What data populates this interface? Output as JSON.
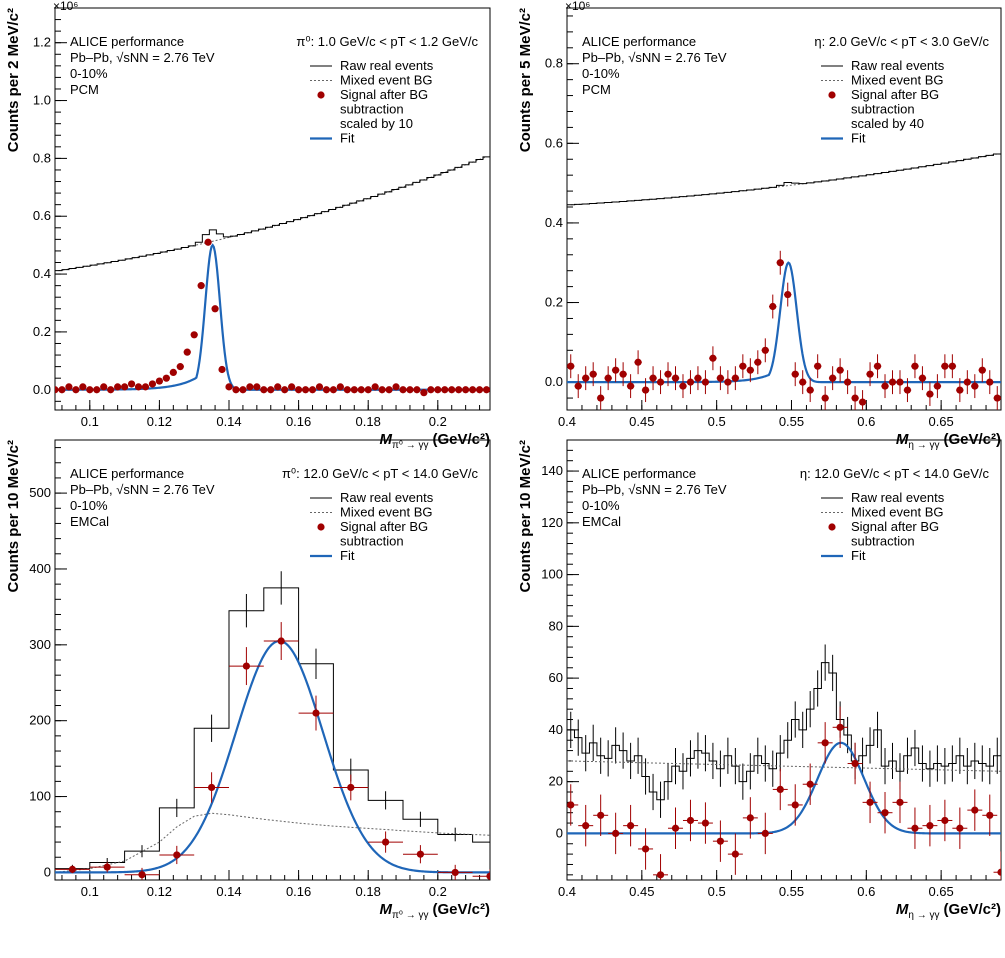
{
  "colors": {
    "signal": "#a00000",
    "fit": "#1f66b8",
    "raw": "#000000",
    "mixed": "#666666"
  },
  "chart_data": [
    {
      "type": "line",
      "panel": "pi0-pcm",
      "xlim": [
        0.09,
        0.215
      ],
      "ylim": [
        -0.07,
        1.32
      ],
      "x_ticks": [
        "0.1",
        "0.12",
        "0.14",
        "0.16",
        "0.18",
        "0.2"
      ],
      "y_ticks": [
        "0.0",
        "0.2",
        "0.4",
        "0.6",
        "0.8",
        "1.0",
        "1.2"
      ],
      "y_exponent": "×10⁶",
      "ylabel": "Counts per  2 MeV/c²",
      "xlabel": "M",
      "xlabel_sub": "π⁰ → γγ",
      "xlabel_unit": "(GeV/c²)",
      "info_lines": [
        "ALICE performance",
        "Pb–Pb, √sNN = 2.76 TeV",
        "0-10%",
        "PCM"
      ],
      "kinematic": "π⁰: 1.0 GeV/c < pT < 1.2 GeV/c",
      "legend": [
        "Raw real events",
        "Mixed event BG",
        "Signal after BG",
        "subtraction",
        "scaled by 10",
        "Fit"
      ],
      "raw": {
        "x0": 0.09,
        "x1": 0.215,
        "a": 0.41,
        "b": 0.81,
        "curv": -0.18,
        "peak_x": 0.135,
        "peak_amp": 0.04,
        "peak_w": 0.002
      },
      "mixed": {
        "a": 0.41,
        "b": 0.81,
        "curv": -0.18
      },
      "signal_x": [
        0.09,
        0.092,
        0.094,
        0.096,
        0.098,
        0.1,
        0.102,
        0.104,
        0.106,
        0.108,
        0.11,
        0.112,
        0.114,
        0.116,
        0.118,
        0.12,
        0.122,
        0.124,
        0.126,
        0.128,
        0.13,
        0.132,
        0.134,
        0.136,
        0.138,
        0.14,
        0.142,
        0.144,
        0.146,
        0.148,
        0.15,
        0.152,
        0.154,
        0.156,
        0.158,
        0.16,
        0.162,
        0.164,
        0.166,
        0.168,
        0.17,
        0.172,
        0.174,
        0.176,
        0.178,
        0.18,
        0.182,
        0.184,
        0.186,
        0.188,
        0.19,
        0.192,
        0.194,
        0.196,
        0.198,
        0.2,
        0.202,
        0.204,
        0.206,
        0.208,
        0.21,
        0.212,
        0.214
      ],
      "signal_y": [
        0.0,
        0.0,
        0.01,
        0.0,
        0.01,
        0.0,
        0.0,
        0.01,
        0.0,
        0.01,
        0.01,
        0.02,
        0.01,
        0.01,
        0.02,
        0.03,
        0.04,
        0.06,
        0.08,
        0.13,
        0.19,
        0.36,
        0.51,
        0.28,
        0.07,
        0.01,
        0.0,
        0.0,
        0.01,
        0.01,
        0.0,
        0.0,
        0.01,
        0.0,
        0.01,
        0.0,
        0.0,
        0.0,
        0.01,
        0.0,
        0.0,
        0.01,
        0.0,
        0.0,
        0.0,
        0.0,
        0.01,
        0.0,
        0.0,
        0.01,
        0.0,
        0.0,
        0.0,
        -0.01,
        0.0,
        0.0,
        0.0,
        0.0,
        0.0,
        0.0,
        0.0,
        0.0,
        0.0
      ],
      "signal_err": 0.008,
      "signal_xerr": 0.001,
      "fit": {
        "mu": 0.1353,
        "sigma": 0.0021,
        "amp": 0.5,
        "tail": 0.006,
        "xmin": 0.09,
        "xmax": 0.215
      }
    },
    {
      "type": "line",
      "panel": "eta-pcm",
      "xlim": [
        0.4,
        0.69
      ],
      "ylim": [
        -0.07,
        0.94
      ],
      "x_ticks": [
        "0.4",
        "0.45",
        "0.5",
        "0.55",
        "0.6",
        "0.65"
      ],
      "y_ticks": [
        "0.0",
        "0.2",
        "0.4",
        "0.6",
        "0.8"
      ],
      "y_exponent": "×10⁶",
      "ylabel": "Counts per  5 MeV/c²",
      "xlabel": "M",
      "xlabel_sub": "η → γγ",
      "xlabel_unit": "(GeV/c²)",
      "info_lines": [
        "ALICE performance",
        "Pb–Pb, √sNN = 2.76 TeV",
        "0-10%",
        "PCM"
      ],
      "kinematic": "η: 2.0 GeV/c < pT < 3.0 GeV/c",
      "legend": [
        "Raw real events",
        "Mixed event BG",
        "Signal after BG",
        "subtraction",
        "scaled by 40",
        "Fit"
      ],
      "raw": {
        "x0": 0.4,
        "x1": 0.69,
        "a": 0.445,
        "b": 0.575,
        "curv": -0.07,
        "peak_x": 0.548,
        "peak_amp": 0.008,
        "peak_w": 0.004
      },
      "mixed": {
        "a": 0.445,
        "b": 0.575,
        "curv": -0.07
      },
      "signal_x": [
        0.4025,
        0.4075,
        0.4125,
        0.4175,
        0.4225,
        0.4275,
        0.4325,
        0.4375,
        0.4425,
        0.4475,
        0.4525,
        0.4575,
        0.4625,
        0.4675,
        0.4725,
        0.4775,
        0.4825,
        0.4875,
        0.4925,
        0.4975,
        0.5025,
        0.5075,
        0.5125,
        0.5175,
        0.5225,
        0.5275,
        0.5325,
        0.5375,
        0.5425,
        0.5475,
        0.5525,
        0.5575,
        0.5625,
        0.5675,
        0.5725,
        0.5775,
        0.5825,
        0.5875,
        0.5925,
        0.5975,
        0.6025,
        0.6075,
        0.6125,
        0.6175,
        0.6225,
        0.6275,
        0.6325,
        0.6375,
        0.6425,
        0.6475,
        0.6525,
        0.6575,
        0.6625,
        0.6675,
        0.6725,
        0.6775,
        0.6825,
        0.6875
      ],
      "signal_y": [
        0.04,
        -0.01,
        0.01,
        0.02,
        -0.04,
        0.01,
        0.03,
        0.02,
        -0.01,
        0.05,
        -0.02,
        0.01,
        0.0,
        0.02,
        0.01,
        -0.01,
        0.0,
        0.01,
        0.0,
        0.06,
        0.01,
        0.0,
        0.01,
        0.04,
        0.03,
        0.05,
        0.08,
        0.19,
        0.3,
        0.22,
        0.02,
        0.0,
        -0.02,
        0.04,
        -0.04,
        0.01,
        0.03,
        0.0,
        -0.04,
        -0.05,
        0.02,
        0.04,
        -0.01,
        0.0,
        0.0,
        -0.02,
        0.04,
        0.01,
        -0.03,
        -0.01,
        0.04,
        0.04,
        -0.02,
        0.0,
        -0.01,
        0.03,
        0.0,
        -0.04
      ],
      "signal_err": 0.03,
      "signal_xerr": 0.0025,
      "fit": {
        "mu": 0.548,
        "sigma": 0.0055,
        "amp": 0.3,
        "tail": 0.012,
        "xmin": 0.4,
        "xmax": 0.69
      }
    },
    {
      "type": "line",
      "panel": "pi0-emcal",
      "xlim": [
        0.09,
        0.215
      ],
      "ylim": [
        -10,
        570
      ],
      "x_ticks": [
        "0.1",
        "0.12",
        "0.14",
        "0.16",
        "0.18",
        "0.2"
      ],
      "y_ticks": [
        "0",
        "100",
        "200",
        "300",
        "400",
        "500"
      ],
      "y_exponent": "",
      "ylabel": "Counts per 10 MeV/c²",
      "xlabel": "M",
      "xlabel_sub": "π⁰ → γγ",
      "xlabel_unit": "(GeV/c²)",
      "info_lines": [
        "ALICE performance",
        "Pb–Pb, √sNN = 2.76 TeV",
        "0-10%",
        "EMCal"
      ],
      "kinematic": "π⁰: 12.0 GeV/c < pT < 14.0 GeV/c",
      "legend": [
        "Raw real events",
        "Mixed event BG",
        "Signal after BG",
        "subtraction",
        "Fit"
      ],
      "raw_bins_x": [
        0.09,
        0.1,
        0.11,
        0.12,
        0.13,
        0.14,
        0.15,
        0.16,
        0.17,
        0.18,
        0.19,
        0.2,
        0.21
      ],
      "raw_bins_y": [
        5,
        13,
        28,
        85,
        190,
        345,
        375,
        275,
        135,
        95,
        70,
        50,
        40
      ],
      "raw_err": [
        5,
        6,
        8,
        12,
        18,
        22,
        22,
        20,
        15,
        12,
        10,
        9,
        8
      ],
      "mixed_x": [
        0.09,
        0.1,
        0.11,
        0.12,
        0.125,
        0.13,
        0.135,
        0.14,
        0.15,
        0.16,
        0.17,
        0.18,
        0.19,
        0.2,
        0.21,
        0.215
      ],
      "mixed_y": [
        0,
        5,
        15,
        40,
        60,
        74,
        78,
        76,
        70,
        65,
        61,
        58,
        55,
        52,
        50,
        49
      ],
      "signal_x": [
        0.095,
        0.105,
        0.115,
        0.125,
        0.135,
        0.145,
        0.155,
        0.165,
        0.175,
        0.185,
        0.195,
        0.205,
        0.215
      ],
      "signal_y": [
        4,
        7,
        -3,
        23,
        112,
        272,
        305,
        210,
        112,
        40,
        24,
        0,
        -5
      ],
      "signal_err": [
        5,
        7,
        9,
        12,
        20,
        25,
        25,
        23,
        17,
        14,
        12,
        10,
        9
      ],
      "signal_xerr": 0.005,
      "fit": {
        "mu": 0.1545,
        "sigma": 0.0125,
        "amp": 305,
        "tail": 0,
        "xmin": 0.09,
        "xmax": 0.215
      }
    },
    {
      "type": "line",
      "panel": "eta-emcal",
      "xlim": [
        0.4,
        0.69
      ],
      "ylim": [
        -18,
        152
      ],
      "x_ticks": [
        "0.4",
        "0.45",
        "0.5",
        "0.55",
        "0.6",
        "0.65"
      ],
      "y_ticks": [
        "0",
        "20",
        "40",
        "60",
        "80",
        "100",
        "120",
        "140"
      ],
      "y_exponent": "",
      "ylabel": "Counts per 10 MeV/c²",
      "xlabel": "M",
      "xlabel_sub": "η → γγ",
      "xlabel_unit": "(GeV/c²)",
      "info_lines": [
        "ALICE performance",
        "Pb–Pb, √sNN = 2.76 TeV",
        "0-10%",
        "EMCal"
      ],
      "kinematic": "η: 12.0 GeV/c < pT < 14.0 GeV/c",
      "legend": [
        "Raw real events",
        "Mixed event BG",
        "Signal after BG",
        "subtraction",
        "Fit"
      ],
      "raw_bins_x": [
        0.4,
        0.405,
        0.41,
        0.415,
        0.42,
        0.425,
        0.43,
        0.435,
        0.44,
        0.445,
        0.45,
        0.455,
        0.46,
        0.465,
        0.47,
        0.475,
        0.48,
        0.485,
        0.49,
        0.495,
        0.5,
        0.505,
        0.51,
        0.515,
        0.52,
        0.525,
        0.53,
        0.535,
        0.54,
        0.545,
        0.55,
        0.555,
        0.56,
        0.565,
        0.57,
        0.575,
        0.58,
        0.585,
        0.59,
        0.595,
        0.6,
        0.605,
        0.61,
        0.615,
        0.62,
        0.625,
        0.63,
        0.635,
        0.64,
        0.645,
        0.65,
        0.655,
        0.66,
        0.665,
        0.67,
        0.675,
        0.68,
        0.685
      ],
      "raw_bins_y": [
        40,
        37,
        31,
        35,
        30,
        29,
        34,
        32,
        28,
        30,
        22,
        16,
        13,
        20,
        26,
        24,
        29,
        32,
        31,
        28,
        25,
        30,
        26,
        20,
        24,
        30,
        27,
        25,
        31,
        36,
        44,
        40,
        48,
        56,
        66,
        62,
        44,
        38,
        28,
        30,
        34,
        40,
        26,
        28,
        24,
        30,
        33,
        27,
        25,
        27,
        26,
        27,
        30,
        26,
        28,
        27,
        26,
        30
      ],
      "raw_err": 7,
      "mixed_a": 28,
      "mixed_b": 24,
      "signal_x": [
        0.4025,
        0.4125,
        0.4225,
        0.4325,
        0.4425,
        0.4525,
        0.4625,
        0.4725,
        0.4825,
        0.4925,
        0.5025,
        0.5125,
        0.5225,
        0.5325,
        0.5425,
        0.5525,
        0.5625,
        0.5725,
        0.5825,
        0.5925,
        0.6025,
        0.6125,
        0.6225,
        0.6325,
        0.6425,
        0.6525,
        0.6625,
        0.6725,
        0.6825,
        0.69
      ],
      "signal_y": [
        11,
        3,
        7,
        0,
        3,
        -6,
        -16,
        2,
        5,
        4,
        -3,
        -8,
        6,
        0,
        17,
        11,
        19,
        35,
        41,
        27,
        12,
        8,
        12,
        2,
        3,
        5,
        2,
        9,
        7,
        -15
      ],
      "signal_err": 8,
      "signal_xerr": 0.005,
      "fit": {
        "mu": 0.583,
        "sigma": 0.0155,
        "amp": 35,
        "tail": 0,
        "xmin": 0.4,
        "xmax": 0.69
      }
    }
  ]
}
